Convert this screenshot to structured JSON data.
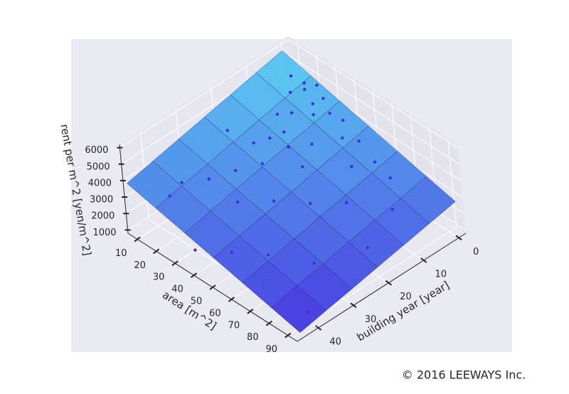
{
  "chart_data": {
    "type": "surface3d",
    "xlabel": "area [m^2]",
    "ylabel": "building year [year]",
    "zlabel": "rent per m^2 [yen/m^2]",
    "xlim": [
      5,
      95
    ],
    "ylim": [
      -2,
      46
    ],
    "zlim": [
      800,
      6200
    ],
    "xticks": [
      10,
      20,
      30,
      40,
      50,
      60,
      70,
      80,
      90
    ],
    "yticks": [
      0,
      10,
      20,
      30,
      40
    ],
    "zticks": [
      1000,
      2000,
      3000,
      4000,
      5000,
      6000
    ],
    "colormap": [
      "#3b2ee0",
      "#50c8f2"
    ],
    "surface": {
      "x": [
        5,
        20,
        35,
        50,
        65,
        80,
        95
      ],
      "y": [
        0,
        7.5,
        15,
        22.5,
        30,
        37.5,
        45
      ],
      "z": [
        [
          5600,
          5283,
          4967,
          4650,
          4333,
          4017,
          3700
        ],
        [
          5167,
          4853,
          4539,
          4225,
          3911,
          3597,
          3283
        ],
        [
          4733,
          4422,
          4111,
          3800,
          3489,
          3178,
          2867
        ],
        [
          4300,
          3992,
          3683,
          3375,
          3067,
          2758,
          2450
        ],
        [
          3867,
          3561,
          3256,
          2950,
          2644,
          2339,
          2033
        ],
        [
          3433,
          3130,
          2828,
          2525,
          2222,
          1920,
          1617
        ],
        [
          3000,
          2700,
          2400,
          2100,
          1800,
          1500,
          1200
        ]
      ]
    },
    "points": {
      "color": "#3a2fd8",
      "x": [
        20,
        22,
        25,
        18,
        28,
        30,
        24,
        32,
        35,
        20,
        27,
        15,
        40,
        45,
        38,
        50,
        55,
        60,
        30,
        25,
        20,
        15,
        35,
        45,
        55,
        65,
        70,
        80,
        25,
        22,
        33,
        42,
        12,
        18,
        60,
        75,
        85,
        90,
        50,
        40
      ],
      "y": [
        2,
        3,
        1,
        5,
        4,
        2,
        8,
        6,
        3,
        10,
        12,
        3,
        2,
        5,
        10,
        3,
        8,
        4,
        20,
        25,
        30,
        35,
        30,
        25,
        20,
        15,
        5,
        10,
        15,
        18,
        14,
        15,
        20,
        40,
        35,
        30,
        20,
        40,
        40,
        45
      ],
      "z": [
        5000,
        4900,
        5100,
        4700,
        4600,
        4800,
        4300,
        4500,
        4400,
        4200,
        3900,
        5200,
        4200,
        3900,
        3700,
        3800,
        3300,
        3400,
        3300,
        3200,
        3000,
        3100,
        2700,
        2800,
        2700,
        2800,
        3300,
        2800,
        3800,
        3700,
        3700,
        3300,
        4000,
        3200,
        2000,
        1900,
        2200,
        1400,
        2100,
        2200
      ]
    }
  },
  "footer": {
    "copyright": "© 2016 LEEWAYS Inc."
  }
}
